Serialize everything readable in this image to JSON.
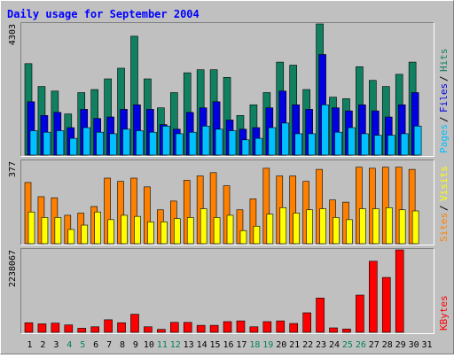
{
  "chart_data": {
    "type": "bar",
    "title": "Daily usage for September 2004",
    "categories": [
      "1",
      "2",
      "3",
      "4",
      "5",
      "6",
      "7",
      "8",
      "9",
      "10",
      "11",
      "12",
      "13",
      "14",
      "15",
      "16",
      "17",
      "18",
      "19",
      "20",
      "21",
      "22",
      "23",
      "24",
      "25",
      "26",
      "27",
      "28",
      "29",
      "30",
      "31"
    ],
    "weekend_days": [
      "4",
      "5",
      "11",
      "12",
      "18",
      "19",
      "25",
      "26"
    ],
    "panels": [
      {
        "name": "hits-files-pages",
        "ymax_label": "4303",
        "ylim": [
          0,
          4303
        ],
        "side_labels": [
          "Pages",
          "Files",
          "Hits"
        ],
        "series": [
          {
            "name": "Hits",
            "color": "#108060",
            "values": [
              3000,
              2250,
              2100,
              1350,
              2050,
              2150,
              2500,
              2850,
              3900,
              2500,
              1550,
              2050,
              2700,
              2800,
              2800,
              2550,
              1300,
              1650,
              2050,
              3050,
              2950,
              2150,
              4303,
              1900,
              1850,
              2900,
              2450,
              2250,
              2650,
              3050,
              0
            ]
          },
          {
            "name": "Files",
            "color": "#0000e0",
            "values": [
              1750,
              1300,
              1400,
              900,
              1500,
              1200,
              1250,
              1500,
              1650,
              1500,
              1000,
              850,
              1400,
              1550,
              1750,
              1150,
              850,
              900,
              1550,
              2100,
              1650,
              1500,
              3300,
              1550,
              1450,
              1650,
              1450,
              1250,
              1650,
              2050,
              0
            ]
          },
          {
            "name": "Pages",
            "color": "#00c0ff",
            "values": [
              800,
              750,
              800,
              550,
              900,
              750,
              700,
              850,
              800,
              750,
              950,
              700,
              750,
              950,
              850,
              800,
              500,
              550,
              900,
              1050,
              700,
              700,
              1650,
              750,
              900,
              700,
              650,
              650,
              700,
              950,
              0
            ]
          }
        ]
      },
      {
        "name": "sites-visits",
        "ymax_label": "377",
        "ylim": [
          0,
          377
        ],
        "side_labels": [
          "Sites",
          "Visits"
        ],
        "series": [
          {
            "name": "Sites",
            "color": "#ff8000",
            "values": [
              280,
              215,
              210,
              130,
              140,
              170,
              300,
              285,
              300,
              260,
              155,
              195,
              290,
              310,
              325,
              265,
              155,
              205,
              345,
              310,
              310,
              285,
              340,
              200,
              190,
              350,
              345,
              350,
              350,
              340,
              0
            ]
          },
          {
            "name": "Visits",
            "color": "#ffff00",
            "values": [
              145,
              120,
              120,
              65,
              85,
              145,
              110,
              130,
              125,
              100,
              100,
              115,
              120,
              160,
              120,
              130,
              60,
              80,
              135,
              165,
              140,
              155,
              160,
              120,
              110,
              160,
              160,
              165,
              155,
              150,
              0
            ]
          }
        ]
      },
      {
        "name": "kbytes",
        "ymax_label": "2238067",
        "ylim": [
          0,
          2238067
        ],
        "side_labels": [
          "KBytes"
        ],
        "series": [
          {
            "name": "KBytes",
            "color": "#ff0000",
            "values": [
              260000,
              230000,
              250000,
              200000,
              110000,
              150000,
              340000,
              260000,
              490000,
              150000,
              80000,
              270000,
              270000,
              190000,
              190000,
              290000,
              310000,
              150000,
              290000,
              310000,
              240000,
              530000,
              930000,
              120000,
              90000,
              1010000,
              1930000,
              1490000,
              2238067,
              0,
              0
            ]
          }
        ]
      }
    ]
  },
  "colors": {
    "background": "#c0c0c0",
    "border_dark": "#808080",
    "border_light": "#ffffff",
    "title_text": "#0000ff",
    "axis_text": "#000000",
    "weekend_day": "#00805c",
    "weekday": "#000000"
  }
}
